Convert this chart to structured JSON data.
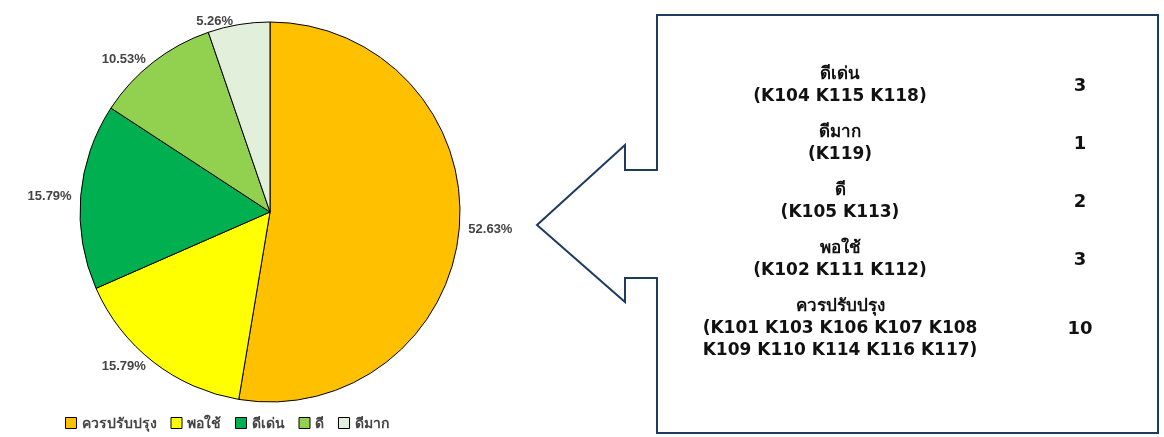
{
  "chart_data": {
    "type": "pie",
    "categories": [
      "ควรปรับปรุง",
      "พอใช้",
      "ดีเด่น",
      "ดี",
      "ดีมาก"
    ],
    "values": [
      52.63,
      15.79,
      15.79,
      10.53,
      5.26
    ],
    "colors": [
      "#ffc000",
      "#ffff00",
      "#00b050",
      "#92d050",
      "#e2efda"
    ],
    "value_labels": [
      "52.63%",
      "15.79%",
      "15.79%",
      "10.53%",
      "5.26%"
    ],
    "legend": "bottom left",
    "annotations": [
      "ดีเด่น\n(K104 K115 K118)",
      "3",
      "ดีมาก\n(K119)",
      "1",
      "ดี\n(K105 K113)",
      "2",
      "พอใช้\n(K102 K111 K112)",
      "3",
      "ควรปรับปรุง\n(K101 K103 K106 K107 K108\nK109 K110 K114 K116 K117)",
      "10"
    ]
  }
}
